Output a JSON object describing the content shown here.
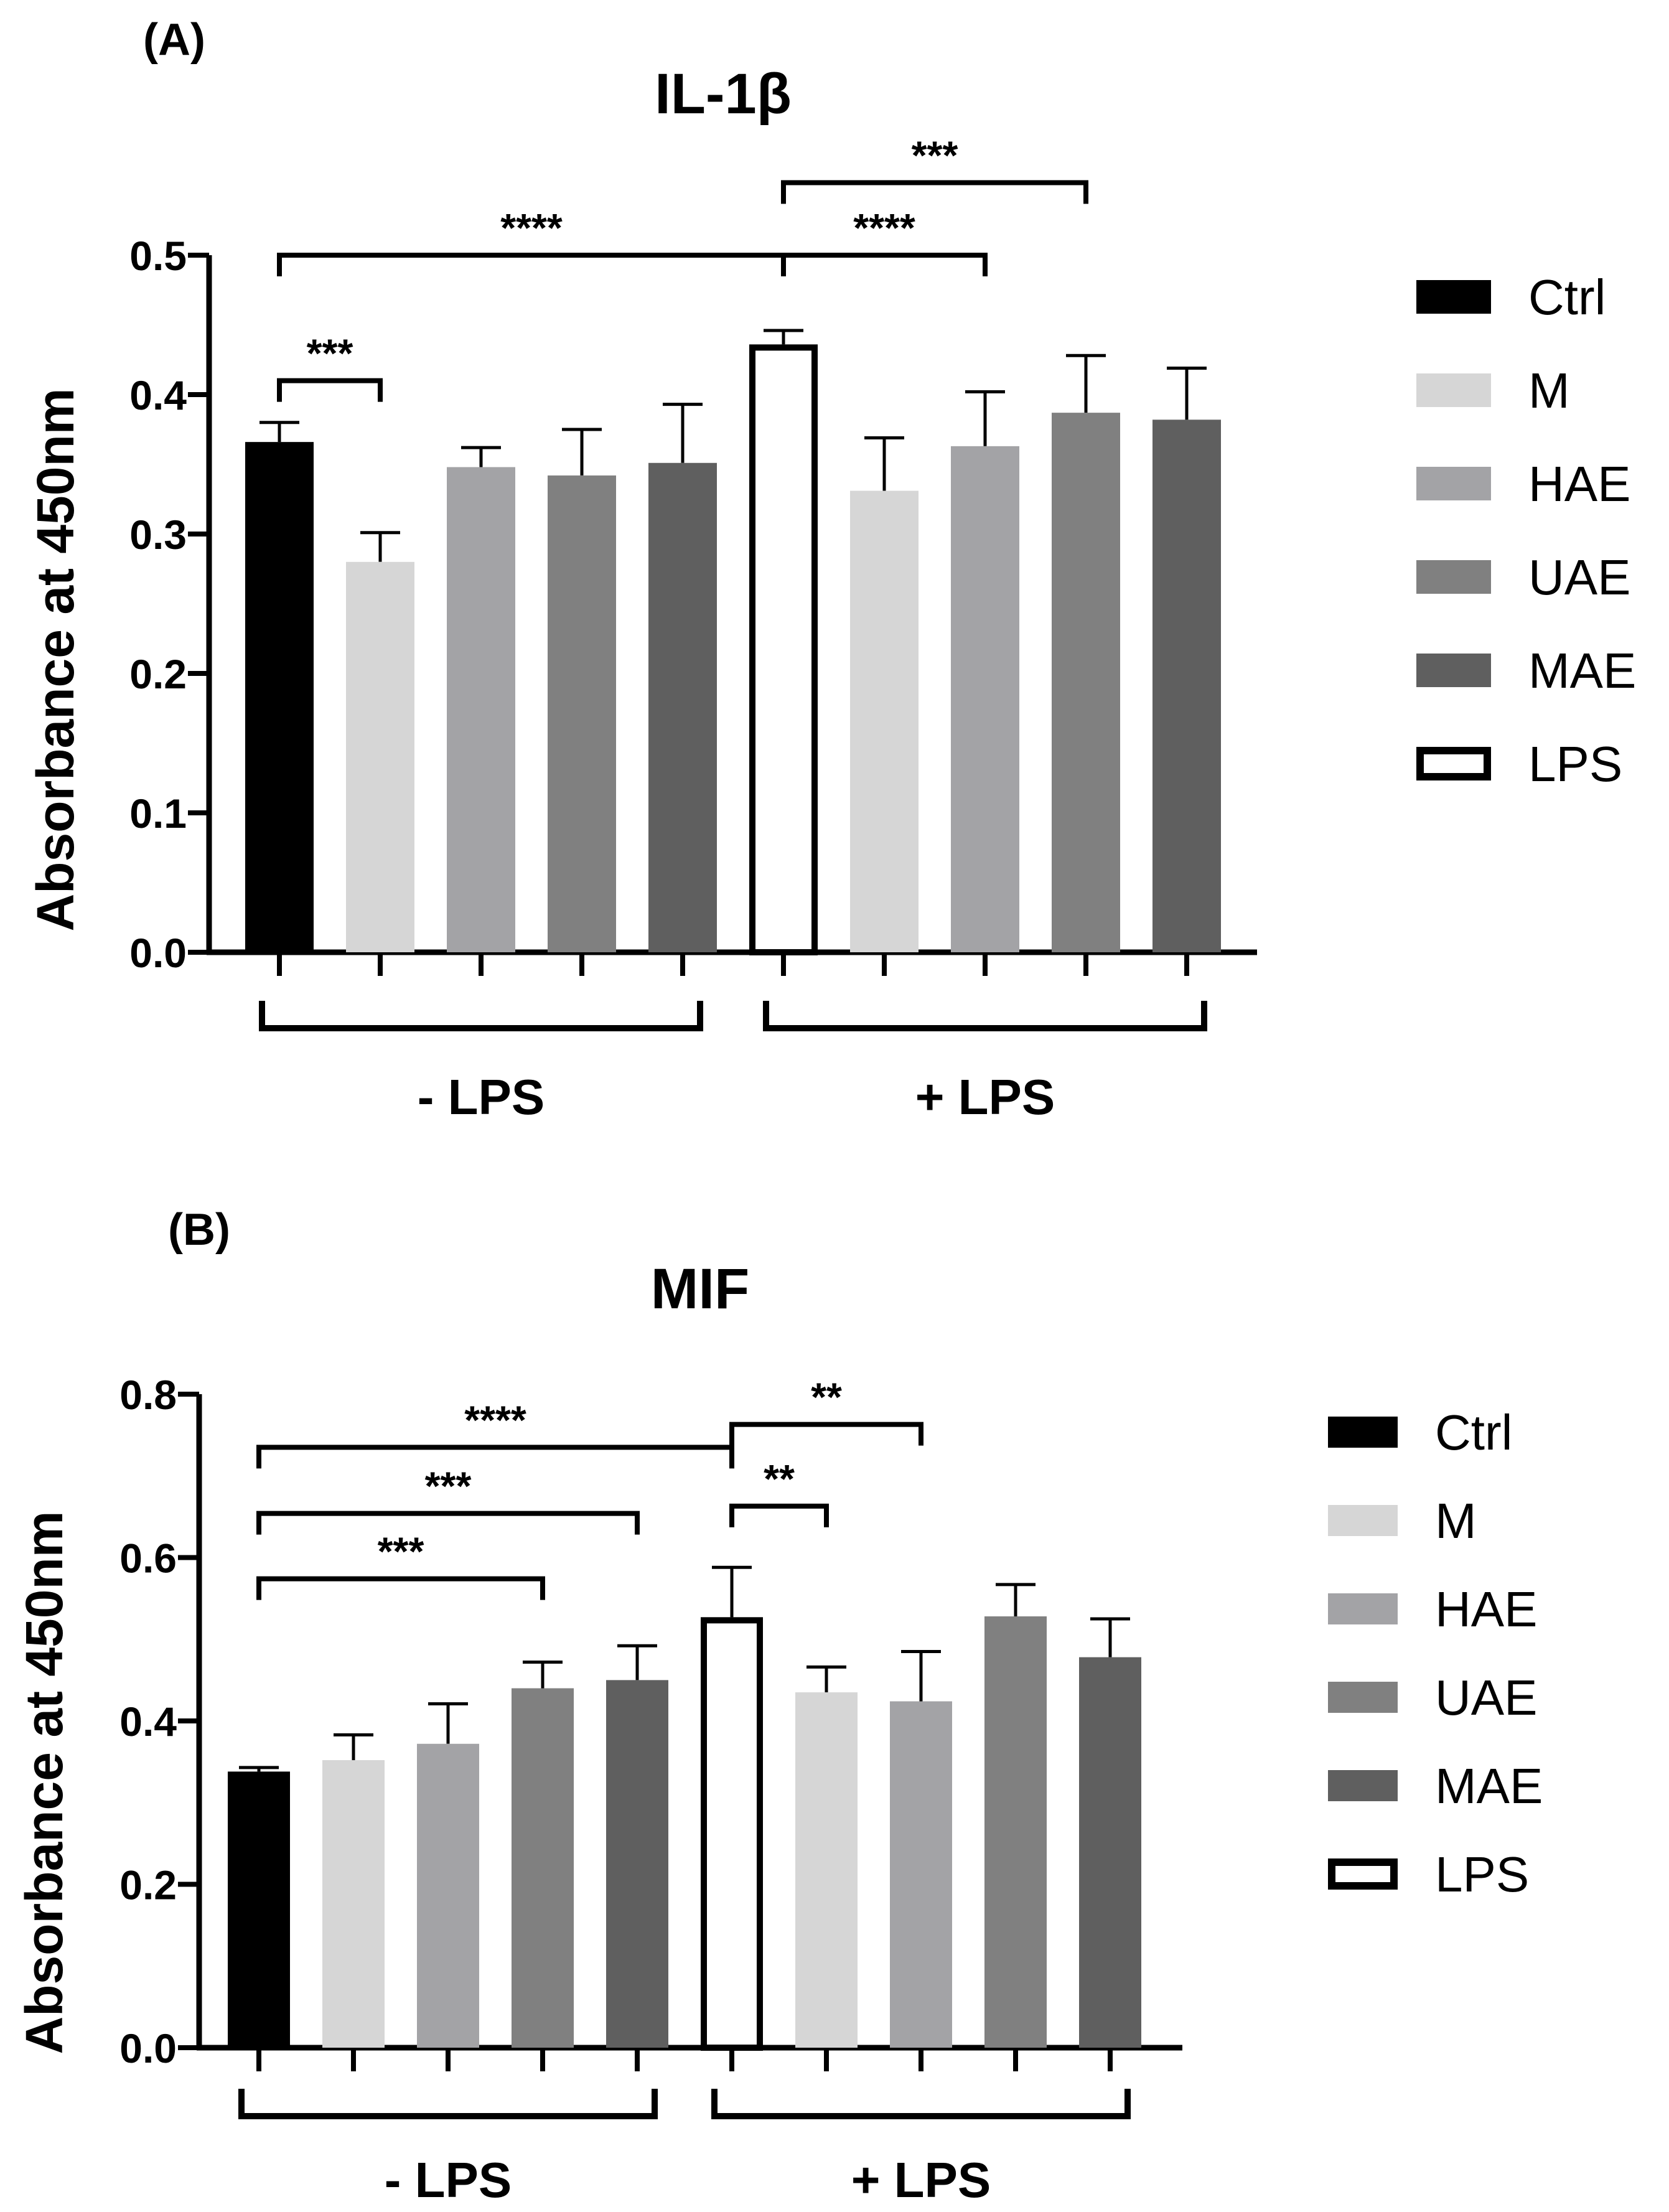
{
  "colors": {
    "Ctrl": "#000000",
    "M": "#d6d6d6",
    "HAE": "#a3a3a6",
    "UAE": "#808080",
    "MAE": "#5f5f5f",
    "LPS": "#ffffff",
    "ink": "#000000"
  },
  "legend_items": [
    {
      "name": "Ctrl",
      "key": "Ctrl"
    },
    {
      "name": "M",
      "key": "M"
    },
    {
      "name": "HAE",
      "key": "HAE"
    },
    {
      "name": "UAE",
      "key": "UAE"
    },
    {
      "name": "MAE",
      "key": "MAE"
    },
    {
      "name": "LPS",
      "key": "LPS"
    }
  ],
  "chart_data": [
    {
      "panel_label": "(A)",
      "type": "bar",
      "title": "IL-1β",
      "ylabel": "Absorbance at 450nm",
      "ylim": [
        0,
        0.5
      ],
      "yticks": [
        "0.0",
        "0.1",
        "0.2",
        "0.3",
        "0.4",
        "0.5"
      ],
      "ytick_values": [
        0,
        0.1,
        0.2,
        0.3,
        0.4,
        0.5
      ],
      "groups": [
        {
          "label": "- LPS",
          "bars": [
            0,
            1,
            2,
            3,
            4
          ]
        },
        {
          "label": "+ LPS",
          "bars": [
            5,
            6,
            7,
            8,
            9
          ]
        }
      ],
      "bars": [
        {
          "series": "Ctrl",
          "value": 0.366,
          "error": 0.014
        },
        {
          "series": "M",
          "value": 0.28,
          "error": 0.021
        },
        {
          "series": "HAE",
          "value": 0.348,
          "error": 0.014
        },
        {
          "series": "UAE",
          "value": 0.342,
          "error": 0.033
        },
        {
          "series": "MAE",
          "value": 0.351,
          "error": 0.042
        },
        {
          "series": "LPS",
          "value": 0.436,
          "error": 0.01
        },
        {
          "series": "M",
          "value": 0.331,
          "error": 0.038
        },
        {
          "series": "HAE",
          "value": 0.363,
          "error": 0.039
        },
        {
          "series": "UAE",
          "value": 0.387,
          "error": 0.041
        },
        {
          "series": "MAE",
          "value": 0.382,
          "error": 0.037
        }
      ],
      "significance": [
        {
          "from": 0,
          "to": 1,
          "level": 0.41,
          "label": "***"
        },
        {
          "from": 0,
          "to": 5,
          "level": 0.5,
          "label": "****"
        },
        {
          "from": 5,
          "to": 7,
          "level": 0.5,
          "label": "****"
        },
        {
          "from": 5,
          "to": 8,
          "level": 0.552,
          "label": "***"
        }
      ]
    },
    {
      "panel_label": "(B)",
      "type": "bar",
      "title": "MIF",
      "ylabel": "Absorbance at 450nm",
      "ylim": [
        0,
        0.8
      ],
      "yticks": [
        "0.0",
        "0.2",
        "0.4",
        "0.6",
        "0.8"
      ],
      "ytick_values": [
        0,
        0.2,
        0.4,
        0.6,
        0.8
      ],
      "groups": [
        {
          "label": "- LPS",
          "bars": [
            0,
            1,
            2,
            3,
            4
          ]
        },
        {
          "label": "+ LPS",
          "bars": [
            5,
            6,
            7,
            8,
            9
          ]
        }
      ],
      "bars": [
        {
          "series": "Ctrl",
          "value": 0.338,
          "error": 0.005
        },
        {
          "series": "M",
          "value": 0.352,
          "error": 0.031
        },
        {
          "series": "HAE",
          "value": 0.372,
          "error": 0.049
        },
        {
          "series": "UAE",
          "value": 0.44,
          "error": 0.032
        },
        {
          "series": "MAE",
          "value": 0.45,
          "error": 0.042
        },
        {
          "series": "LPS",
          "value": 0.527,
          "error": 0.061
        },
        {
          "series": "M",
          "value": 0.435,
          "error": 0.031
        },
        {
          "series": "HAE",
          "value": 0.424,
          "error": 0.061
        },
        {
          "series": "UAE",
          "value": 0.528,
          "error": 0.039
        },
        {
          "series": "MAE",
          "value": 0.478,
          "error": 0.047
        }
      ],
      "significance": [
        {
          "from": 0,
          "to": 3,
          "level": 0.574,
          "label": "***"
        },
        {
          "from": 0,
          "to": 4,
          "level": 0.654,
          "label": "***"
        },
        {
          "from": 0,
          "to": 5,
          "level": 0.735,
          "label": "****"
        },
        {
          "from": 5,
          "to": 6,
          "level": 0.663,
          "label": "**"
        },
        {
          "from": 5,
          "to": 7,
          "level": 0.763,
          "label": "**"
        }
      ]
    }
  ]
}
